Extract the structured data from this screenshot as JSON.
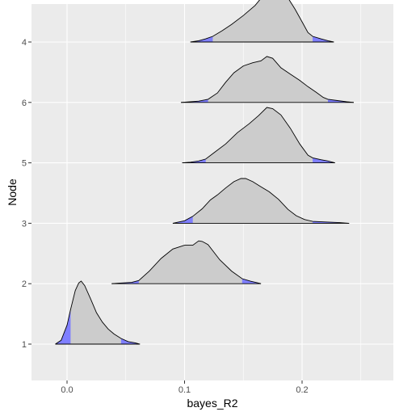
{
  "chart_data": {
    "type": "ridgeline",
    "xlabel": "bayes_R2",
    "ylabel": "Node",
    "xlim": [
      -0.03,
      0.26
    ],
    "x_ticks": [
      0.0,
      0.1,
      0.2
    ],
    "x_tick_labels": [
      "0.0",
      "0.1",
      "0.2"
    ],
    "y_order_bottom_to_top": [
      "1",
      "2",
      "3",
      "5",
      "6",
      "4"
    ],
    "grid": true,
    "panel_background": "#ebebeb",
    "density_fill": "#cccccc",
    "tail_fill": "#7f7fff",
    "ridges": [
      {
        "name": "1",
        "tails": [
          0.003,
          0.046
        ],
        "curve": [
          [
            -0.01,
            0
          ],
          [
            -0.005,
            0.06
          ],
          [
            0.0,
            0.3
          ],
          [
            0.003,
            0.55
          ],
          [
            0.007,
            0.85
          ],
          [
            0.01,
            0.97
          ],
          [
            0.012,
            1.0
          ],
          [
            0.015,
            0.93
          ],
          [
            0.02,
            0.72
          ],
          [
            0.025,
            0.5
          ],
          [
            0.03,
            0.35
          ],
          [
            0.035,
            0.24
          ],
          [
            0.04,
            0.16
          ],
          [
            0.046,
            0.09
          ],
          [
            0.052,
            0.04
          ],
          [
            0.058,
            0.02
          ],
          [
            0.062,
            0
          ]
        ]
      },
      {
        "name": "2",
        "tails": [
          0.061,
          0.149
        ],
        "curve": [
          [
            0.038,
            0
          ],
          [
            0.045,
            0.01
          ],
          [
            0.055,
            0.02
          ],
          [
            0.061,
            0.05
          ],
          [
            0.07,
            0.2
          ],
          [
            0.08,
            0.4
          ],
          [
            0.09,
            0.55
          ],
          [
            0.1,
            0.61
          ],
          [
            0.107,
            0.61
          ],
          [
            0.112,
            0.68
          ],
          [
            0.115,
            0.67
          ],
          [
            0.12,
            0.62
          ],
          [
            0.13,
            0.38
          ],
          [
            0.14,
            0.2
          ],
          [
            0.149,
            0.08
          ],
          [
            0.156,
            0.04
          ],
          [
            0.163,
            0.01
          ],
          [
            0.165,
            0
          ]
        ]
      },
      {
        "name": "3",
        "tails": [
          0.107,
          0.209
        ],
        "curve": [
          [
            0.09,
            0
          ],
          [
            0.1,
            0.04
          ],
          [
            0.107,
            0.11
          ],
          [
            0.115,
            0.23
          ],
          [
            0.122,
            0.37
          ],
          [
            0.128,
            0.45
          ],
          [
            0.135,
            0.56
          ],
          [
            0.142,
            0.66
          ],
          [
            0.148,
            0.71
          ],
          [
            0.152,
            0.71
          ],
          [
            0.158,
            0.66
          ],
          [
            0.165,
            0.58
          ],
          [
            0.172,
            0.5
          ],
          [
            0.18,
            0.38
          ],
          [
            0.188,
            0.22
          ],
          [
            0.195,
            0.12
          ],
          [
            0.202,
            0.06
          ],
          [
            0.209,
            0.03
          ],
          [
            0.22,
            0.02
          ],
          [
            0.232,
            0.01
          ],
          [
            0.24,
            0
          ]
        ]
      },
      {
        "name": "5",
        "tails": [
          0.118,
          0.209
        ],
        "curve": [
          [
            0.098,
            0
          ],
          [
            0.105,
            0.01
          ],
          [
            0.112,
            0.03
          ],
          [
            0.118,
            0.06
          ],
          [
            0.125,
            0.16
          ],
          [
            0.135,
            0.3
          ],
          [
            0.145,
            0.48
          ],
          [
            0.155,
            0.62
          ],
          [
            0.163,
            0.75
          ],
          [
            0.17,
            0.88
          ],
          [
            0.175,
            0.86
          ],
          [
            0.182,
            0.76
          ],
          [
            0.19,
            0.55
          ],
          [
            0.198,
            0.3
          ],
          [
            0.205,
            0.12
          ],
          [
            0.209,
            0.08
          ],
          [
            0.216,
            0.05
          ],
          [
            0.222,
            0.03
          ],
          [
            0.228,
            0
          ]
        ]
      },
      {
        "name": "6",
        "tails": [
          0.12,
          0.222
        ],
        "curve": [
          [
            0.097,
            0
          ],
          [
            0.105,
            0.01
          ],
          [
            0.112,
            0.02
          ],
          [
            0.12,
            0.05
          ],
          [
            0.128,
            0.15
          ],
          [
            0.135,
            0.32
          ],
          [
            0.142,
            0.47
          ],
          [
            0.15,
            0.58
          ],
          [
            0.158,
            0.63
          ],
          [
            0.165,
            0.66
          ],
          [
            0.17,
            0.73
          ],
          [
            0.175,
            0.7
          ],
          [
            0.182,
            0.55
          ],
          [
            0.19,
            0.45
          ],
          [
            0.198,
            0.35
          ],
          [
            0.205,
            0.25
          ],
          [
            0.212,
            0.16
          ],
          [
            0.218,
            0.08
          ],
          [
            0.222,
            0.05
          ],
          [
            0.23,
            0.03
          ],
          [
            0.238,
            0.01
          ],
          [
            0.244,
            0
          ]
        ]
      },
      {
        "name": "4",
        "tails": [
          0.124,
          0.209
        ],
        "curve": [
          [
            0.105,
            0
          ],
          [
            0.112,
            0.02
          ],
          [
            0.118,
            0.05
          ],
          [
            0.124,
            0.09
          ],
          [
            0.132,
            0.18
          ],
          [
            0.14,
            0.28
          ],
          [
            0.15,
            0.42
          ],
          [
            0.16,
            0.58
          ],
          [
            0.168,
            0.76
          ],
          [
            0.174,
            0.86
          ],
          [
            0.18,
            0.86
          ],
          [
            0.186,
            0.76
          ],
          [
            0.194,
            0.52
          ],
          [
            0.2,
            0.32
          ],
          [
            0.205,
            0.15
          ],
          [
            0.209,
            0.09
          ],
          [
            0.216,
            0.05
          ],
          [
            0.222,
            0.02
          ],
          [
            0.227,
            0
          ]
        ]
      }
    ]
  }
}
